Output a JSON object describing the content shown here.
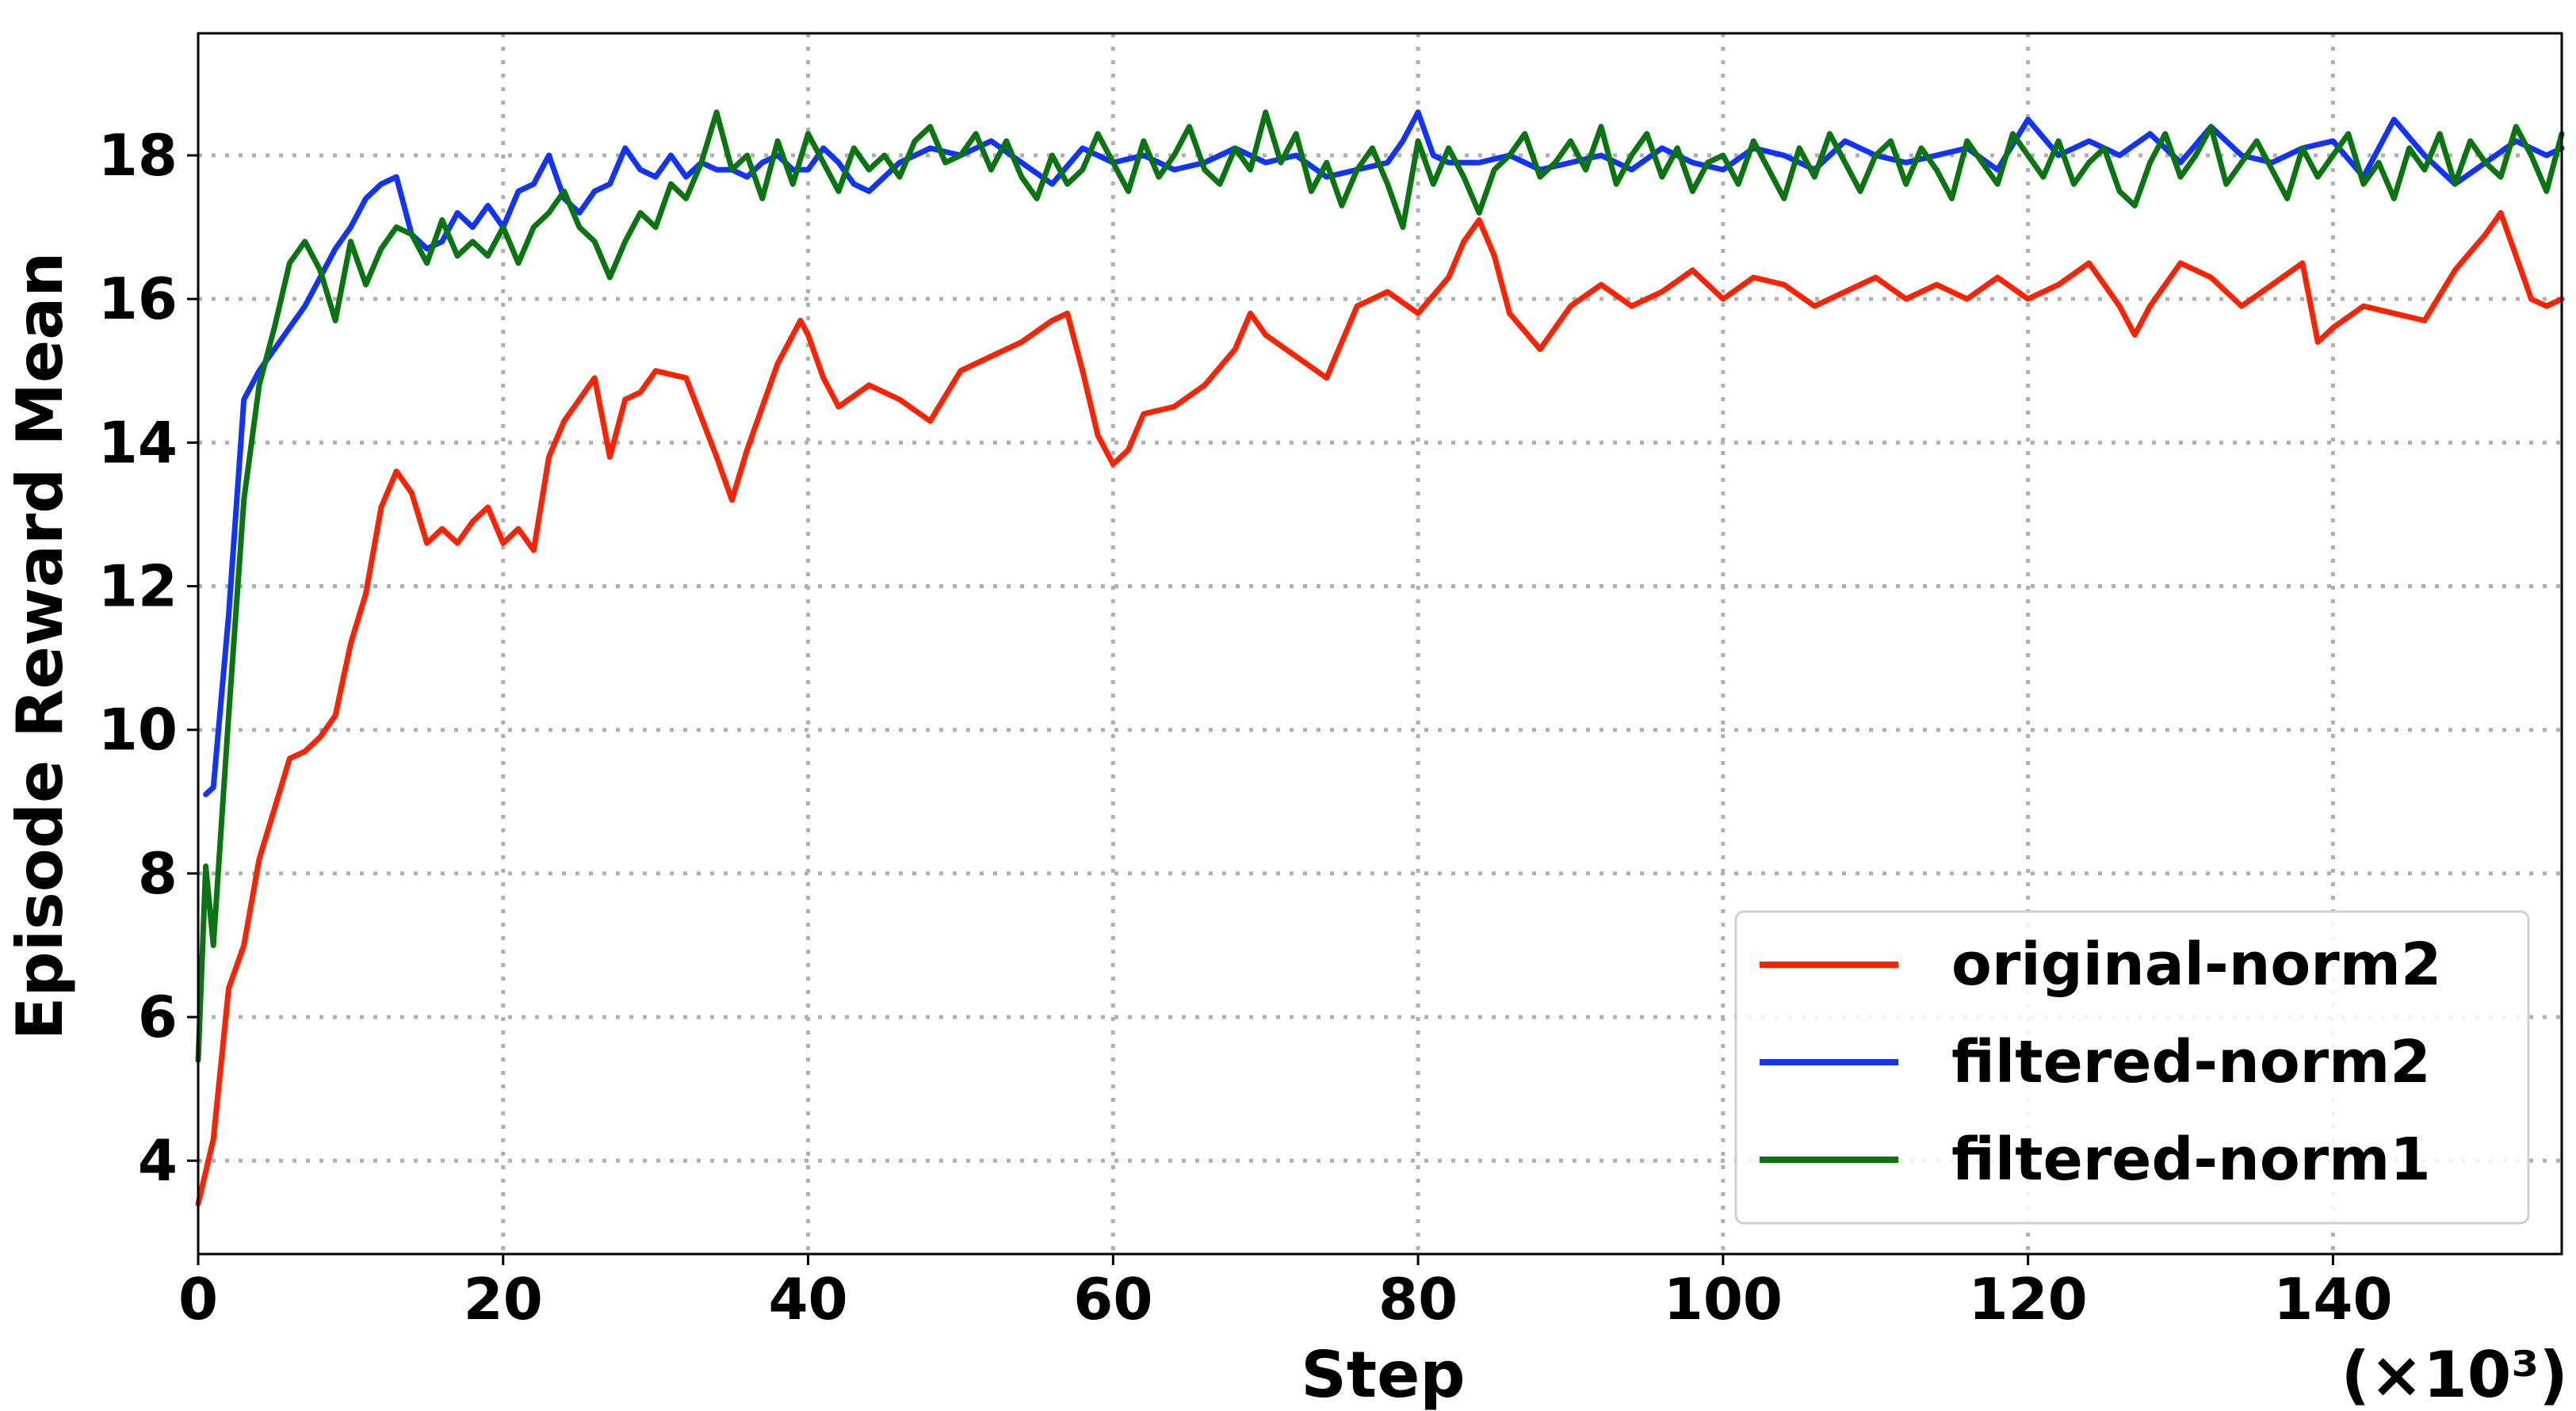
{
  "chart_data": {
    "type": "line",
    "title": "",
    "xlabel": "Step",
    "ylabel": "Episode Reward Mean",
    "x_multiplier_label": "(×10³)",
    "xlim": [
      0,
      155
    ],
    "ylim": [
      2.7,
      19.7
    ],
    "xticks": [
      0,
      20,
      40,
      60,
      80,
      100,
      120,
      140
    ],
    "yticks": [
      4,
      6,
      8,
      10,
      12,
      14,
      16,
      18
    ],
    "grid": true,
    "grid_style": "dotted",
    "legend_position": "lower-right",
    "series": [
      {
        "name": "original-norm2",
        "color": "#ff2200",
        "x": [
          0,
          1,
          2,
          3,
          4,
          5,
          6,
          7,
          8,
          9,
          10,
          11,
          12,
          13,
          14,
          15,
          16,
          17,
          18,
          19,
          20,
          21,
          22,
          23,
          24,
          25,
          26,
          27,
          28,
          29,
          30,
          32,
          34,
          35,
          36,
          38,
          39.5,
          40,
          41,
          42,
          44,
          46,
          48,
          50,
          52,
          54,
          56,
          57,
          58,
          59,
          60,
          61,
          62,
          64,
          66,
          68,
          69,
          70,
          72,
          74,
          75,
          76,
          78,
          80,
          82,
          83,
          84,
          85,
          86,
          88,
          90,
          92,
          94,
          96,
          98,
          100,
          102,
          104,
          106,
          108,
          110,
          112,
          114,
          116,
          118,
          120,
          122,
          124,
          126,
          127,
          128,
          130,
          132,
          134,
          136,
          138,
          139,
          140,
          142,
          144,
          146,
          148,
          150,
          151,
          152,
          153,
          154,
          155
        ],
        "y": [
          3.4,
          4.3,
          6.4,
          7.0,
          8.2,
          8.9,
          9.6,
          9.7,
          9.9,
          10.2,
          11.2,
          11.9,
          13.1,
          13.6,
          13.3,
          12.6,
          12.8,
          12.6,
          12.9,
          13.1,
          12.6,
          12.8,
          12.5,
          13.8,
          14.3,
          14.6,
          14.9,
          13.8,
          14.6,
          14.7,
          15.0,
          14.9,
          13.8,
          13.2,
          13.9,
          15.1,
          15.7,
          15.5,
          14.9,
          14.5,
          14.8,
          14.6,
          14.3,
          15.0,
          15.2,
          15.4,
          15.7,
          15.8,
          15.0,
          14.1,
          13.7,
          13.9,
          14.4,
          14.5,
          14.8,
          15.3,
          15.8,
          15.5,
          15.2,
          14.9,
          15.4,
          15.9,
          16.1,
          15.8,
          16.3,
          16.8,
          17.1,
          16.6,
          15.8,
          15.3,
          15.9,
          16.2,
          15.9,
          16.1,
          16.4,
          16.0,
          16.3,
          16.2,
          15.9,
          16.1,
          16.3,
          16.0,
          16.2,
          16.0,
          16.3,
          16.0,
          16.2,
          16.5,
          15.9,
          15.5,
          15.9,
          16.5,
          16.3,
          15.9,
          16.2,
          16.5,
          15.4,
          15.6,
          15.9,
          15.8,
          15.7,
          16.4,
          16.9,
          17.2,
          16.6,
          16.0,
          15.9,
          16.0
        ]
      },
      {
        "name": "filtered-norm2",
        "color": "#1133ff",
        "x": [
          0.5,
          1,
          2,
          3,
          4,
          5,
          6,
          7,
          8,
          9,
          10,
          11,
          12,
          13,
          14,
          15,
          16,
          17,
          18,
          19,
          20,
          21,
          22,
          23,
          24,
          25,
          26,
          27,
          28,
          29,
          30,
          31,
          32,
          33,
          34,
          35,
          36,
          37,
          38,
          39,
          40,
          41,
          42,
          43,
          44,
          46,
          48,
          50,
          52,
          54,
          56,
          58,
          60,
          62,
          64,
          66,
          68,
          70,
          72,
          74,
          76,
          78,
          79,
          80,
          81,
          82,
          84,
          86,
          88,
          90,
          92,
          94,
          96,
          98,
          100,
          102,
          104,
          106,
          108,
          110,
          112,
          114,
          116,
          118,
          120,
          122,
          124,
          126,
          128,
          130,
          132,
          134,
          136,
          138,
          140,
          142,
          144,
          146,
          148,
          150,
          152,
          154,
          155
        ],
        "y": [
          9.1,
          9.2,
          11.6,
          14.6,
          15.0,
          15.3,
          15.6,
          15.9,
          16.3,
          16.7,
          17.0,
          17.4,
          17.6,
          17.7,
          16.9,
          16.7,
          16.8,
          17.2,
          17.0,
          17.3,
          17.0,
          17.5,
          17.6,
          18.0,
          17.4,
          17.2,
          17.5,
          17.6,
          18.1,
          17.8,
          17.7,
          18.0,
          17.7,
          17.9,
          17.8,
          17.8,
          17.7,
          17.9,
          18.0,
          17.8,
          17.8,
          18.1,
          17.9,
          17.6,
          17.5,
          17.9,
          18.1,
          18.0,
          18.2,
          17.9,
          17.6,
          18.1,
          17.9,
          18.0,
          17.8,
          17.9,
          18.1,
          17.9,
          18.0,
          17.7,
          17.8,
          17.9,
          18.2,
          18.6,
          18.0,
          17.9,
          17.9,
          18.0,
          17.8,
          17.9,
          18.0,
          17.8,
          18.1,
          17.9,
          17.8,
          18.1,
          18.0,
          17.8,
          18.2,
          18.0,
          17.9,
          18.0,
          18.1,
          17.8,
          18.5,
          18.0,
          18.2,
          18.0,
          18.3,
          17.9,
          18.4,
          18.0,
          17.9,
          18.1,
          18.2,
          17.7,
          18.5,
          18.0,
          17.6,
          17.9,
          18.2,
          18.0,
          18.1
        ]
      },
      {
        "name": "filtered-norm1",
        "color": "#0a7510",
        "x": [
          0,
          0.5,
          1,
          2,
          3,
          4,
          5,
          6,
          7,
          8,
          9,
          10,
          11,
          12,
          13,
          14,
          15,
          16,
          17,
          18,
          19,
          20,
          21,
          22,
          23,
          24,
          25,
          26,
          27,
          28,
          29,
          30,
          31,
          32,
          33,
          34,
          35,
          36,
          37,
          38,
          39,
          40,
          41,
          42,
          43,
          44,
          45,
          46,
          47,
          48,
          49,
          50,
          51,
          52,
          53,
          54,
          55,
          56,
          57,
          58,
          59,
          60,
          61,
          62,
          63,
          64,
          65,
          66,
          67,
          68,
          69,
          70,
          71,
          72,
          73,
          74,
          75,
          76,
          77,
          78,
          79,
          80,
          81,
          82,
          83,
          84,
          85,
          86,
          87,
          88,
          89,
          90,
          91,
          92,
          93,
          94,
          95,
          96,
          97,
          98,
          99,
          100,
          101,
          102,
          103,
          104,
          105,
          106,
          107,
          108,
          109,
          110,
          111,
          112,
          113,
          114,
          115,
          116,
          117,
          118,
          119,
          120,
          121,
          122,
          123,
          124,
          125,
          126,
          127,
          128,
          129,
          130,
          131,
          132,
          133,
          134,
          135,
          136,
          137,
          138,
          139,
          140,
          141,
          142,
          143,
          144,
          145,
          146,
          147,
          148,
          149,
          150,
          151,
          152,
          153,
          154,
          155
        ],
        "y": [
          5.4,
          8.1,
          7.0,
          10.2,
          13.2,
          14.8,
          15.6,
          16.5,
          16.8,
          16.4,
          15.7,
          16.8,
          16.2,
          16.7,
          17.0,
          16.9,
          16.5,
          17.1,
          16.6,
          16.8,
          16.6,
          17.0,
          16.5,
          17.0,
          17.2,
          17.5,
          17.0,
          16.8,
          16.3,
          16.8,
          17.2,
          17.0,
          17.6,
          17.4,
          17.9,
          18.6,
          17.8,
          18.0,
          17.4,
          18.2,
          17.6,
          18.3,
          17.9,
          17.5,
          18.1,
          17.8,
          18.0,
          17.7,
          18.2,
          18.4,
          17.9,
          18.0,
          18.3,
          17.8,
          18.2,
          17.7,
          17.4,
          18.0,
          17.6,
          17.8,
          18.3,
          17.9,
          17.5,
          18.2,
          17.7,
          18.0,
          18.4,
          17.8,
          17.6,
          18.1,
          17.8,
          18.6,
          17.9,
          18.3,
          17.5,
          17.9,
          17.3,
          17.8,
          18.1,
          17.6,
          17.0,
          18.2,
          17.6,
          18.1,
          17.7,
          17.2,
          17.8,
          18.0,
          18.3,
          17.7,
          17.9,
          18.2,
          17.8,
          18.4,
          17.6,
          18.0,
          18.3,
          17.7,
          18.1,
          17.5,
          17.9,
          18.0,
          17.6,
          18.2,
          17.8,
          17.4,
          18.1,
          17.7,
          18.3,
          17.9,
          17.5,
          18.0,
          18.2,
          17.6,
          18.1,
          17.8,
          17.4,
          18.2,
          17.9,
          17.6,
          18.3,
          18.0,
          17.7,
          18.2,
          17.6,
          17.9,
          18.1,
          17.5,
          17.3,
          17.9,
          18.3,
          17.7,
          18.0,
          18.4,
          17.6,
          17.9,
          18.2,
          17.8,
          17.4,
          18.1,
          17.7,
          18.0,
          18.3,
          17.6,
          17.9,
          17.4,
          18.1,
          17.8,
          18.3,
          17.6,
          18.2,
          17.9,
          17.7,
          18.4,
          18.0,
          17.5,
          18.3
        ]
      }
    ]
  }
}
